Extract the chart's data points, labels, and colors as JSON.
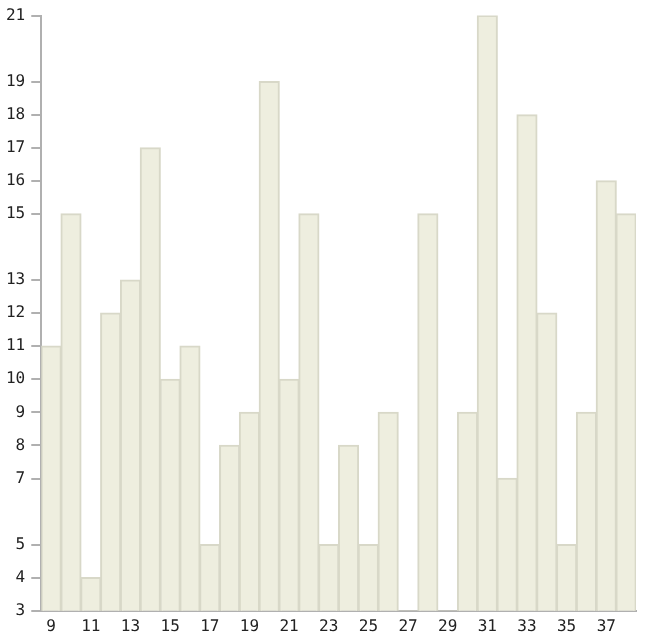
{
  "chart_data": {
    "type": "bar",
    "categories": [
      "9",
      null,
      "11",
      null,
      "13",
      null,
      "15",
      null,
      "17",
      null,
      "19",
      null,
      "21",
      null,
      "23",
      null,
      "25",
      null,
      "27",
      null,
      "29",
      null,
      "31",
      null,
      "33",
      null,
      "35",
      null,
      "37",
      null
    ],
    "values": [
      11,
      15,
      4,
      12,
      13,
      17,
      10,
      11,
      5,
      8,
      9,
      19,
      10,
      15,
      5,
      8,
      5,
      9,
      3,
      15,
      3,
      9,
      21,
      7,
      18,
      12,
      5,
      9,
      16,
      15
    ],
    "color": "#eeeedf",
    "ylim": [
      3,
      21
    ],
    "yticks": [
      3,
      4,
      5,
      7,
      8,
      9,
      10,
      11,
      12,
      13,
      15,
      16,
      17,
      18,
      19,
      21
    ],
    "grid": false,
    "legend": false
  }
}
